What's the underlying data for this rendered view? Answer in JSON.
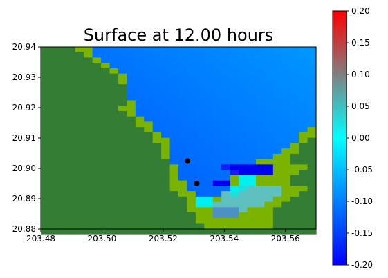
{
  "chart_data": {
    "type": "heatmap",
    "title": "Surface at 12.00 hours",
    "xlabel": "",
    "ylabel": "",
    "xlim": [
      203.48,
      203.57
    ],
    "ylim": [
      20.88,
      20.94
    ],
    "xticks": [
      "203.48",
      "203.50",
      "203.52",
      "203.54",
      "203.56"
    ],
    "yticks": [
      "20.88",
      "20.89",
      "20.90",
      "20.91",
      "20.92",
      "20.93",
      "20.94"
    ],
    "colorbar": {
      "min": -0.2,
      "max": 0.2,
      "ticks": [
        "-0.20",
        "-0.15",
        "-0.10",
        "-0.05",
        "0.00",
        "0.05",
        "0.10",
        "0.15",
        "0.20"
      ],
      "colors": [
        "#0000ff",
        "#00ffff",
        "#ff0000"
      ]
    },
    "grid": {
      "x_start": 203.48,
      "x_step": 0.0028125,
      "y_top": 20.94,
      "y_step": 0.00176,
      "legend": {
        "L": "#347d34",
        "G": "#7ab300",
        "H": "#8db300",
        "W": "#4d90c4",
        "C": "#00f0f0",
        "c": "#20dede",
        "D": "#0000f0",
        "d": "#1a1aff",
        "T": "#5fc0c0"
      },
      "rows": [
        "LLLLGGhhhhhhhhhhhhhhhhhhhhhhhhhh",
        "LLLLLGhhhhhhhhhhhhhhhhhhhhhhhhhh",
        "LLLLLLGhhhhhhhhhhhhhhhhhhhhhhhhh",
        "LLLLLLLGhhhhhhhhhhhhhhhhhhhhhhhh",
        "LLLLLLLLGhhhhhhhhhhhhhhhhhhhhhhh",
        "LLLLLLLLLGhhhhhhhhhhhhhhhhhhhhhh",
        "LLLLLLLLLGhhhhhhhhhhhhhhhhhhhhhh",
        "LLLLLLLLLLhhhhhhhhhhhhhhhhhhhhhh",
        "LLLLLLLLLLhhhhhhhhhhhhhhhhhhhhhh",
        "LLLLLLLLLLhhhhhhhhhhhhhhhhhhhhhh",
        "LLLLLLLLLLGhhhhhhhhhhhhhhhhhhhhh",
        "LLLLLLLLLGGhhhhhhhhhhhhhhhhhhhhh",
        "LLLLLLLLLLGhhhhhhhhhhhhhhhhhhhhh",
        "LLLLLLLLLLLGhhhhhhhhhhhhhhhhhhhh",
        "LLLLLLLLLLLGGhhhhhhhhhhhhhhhhhhh",
        "LLLLLLLLLLLLGhhhhhhhhhhhhhhhhhhG",
        "LLLLLLLLLLLLLGhhhhhhhhhhhhhhhhGG",
        "LLLLLLLLLLLLLGGhhhhhhhhhhhhhhhGL",
        "LLLLLLLLLLLLLLGhhhhhhhhhhhhhhGLL",
        "LLLLLLLLLLLLLLGhhhhhhhhhhhhhGGLL",
        "LLLLLLLLLLLLLLGhhhhhhhhhhhhGGLLL",
        "LLLLLLLLLLLLLLLhhhhhhhhhhGGGGLLL",
        "LLLLLLLLLLLLLLLGhhhhhdDDDDDGGGGL",
        "LLLLLLLLLLLLLLLGhhhhhhdDDDDGGGLL",
        "LLLLLLLLLLLLLLLGhhhhhhGCCGGGGLLL",
        "LLLLLLLLLLLLLLLGGhhhDDGCCGGGGLLL",
        "LLLLLLLLLLLLLLLGGhhhhhCcTTTTGGGL",
        "LLLLLLLLLLLLLLLLGGhhhTcTTTTTGGLL",
        "LLLLLLLLLLLLLLLLLGCCGTTTTTTGGLLL",
        "LLLLLLLLLLLLLLLLLGCCTTTTTTGGLLLL",
        "LLLLLLLLLLLLLLLLLGGGWWWTGGGLLLLL",
        "LLLLLLLLLLLLLLLLLLGGWWWGGGGLLLLL",
        "LLLLLLLLLLLLLLLLLLGGGGGGGGGLLLLL",
        "LLLLLLLLLLLLLLLLLLLGGGGGGGGLLLLL",
        "LLLLLLLLLLLLLLLLLLLLLLLLLLLLLLLL"
      ]
    },
    "points": [
      {
        "x": 203.528,
        "y": 20.9024
      },
      {
        "x": 203.531,
        "y": 20.895
      }
    ]
  }
}
